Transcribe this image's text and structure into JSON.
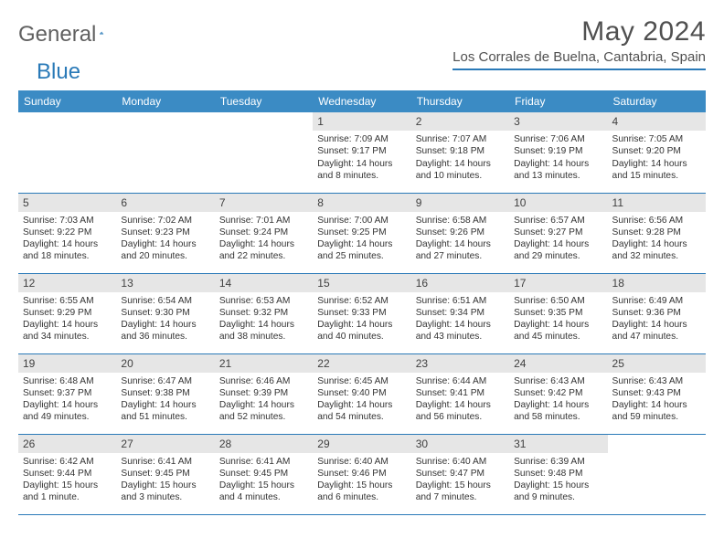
{
  "brand": {
    "part1": "General",
    "part2": "Blue"
  },
  "title": "May 2024",
  "location": "Los Corrales de Buelna, Cantabria, Spain",
  "colors": {
    "header_bg": "#3b8bc4",
    "accent": "#2a7ab8",
    "daynum_bg": "#e6e6e6",
    "text": "#333333",
    "title_text": "#505050"
  },
  "day_headers": [
    "Sunday",
    "Monday",
    "Tuesday",
    "Wednesday",
    "Thursday",
    "Friday",
    "Saturday"
  ],
  "weeks": [
    [
      {
        "n": "",
        "sr": "",
        "ss": "",
        "dl": ""
      },
      {
        "n": "",
        "sr": "",
        "ss": "",
        "dl": ""
      },
      {
        "n": "",
        "sr": "",
        "ss": "",
        "dl": ""
      },
      {
        "n": "1",
        "sr": "7:09 AM",
        "ss": "9:17 PM",
        "dl": "14 hours and 8 minutes."
      },
      {
        "n": "2",
        "sr": "7:07 AM",
        "ss": "9:18 PM",
        "dl": "14 hours and 10 minutes."
      },
      {
        "n": "3",
        "sr": "7:06 AM",
        "ss": "9:19 PM",
        "dl": "14 hours and 13 minutes."
      },
      {
        "n": "4",
        "sr": "7:05 AM",
        "ss": "9:20 PM",
        "dl": "14 hours and 15 minutes."
      }
    ],
    [
      {
        "n": "5",
        "sr": "7:03 AM",
        "ss": "9:22 PM",
        "dl": "14 hours and 18 minutes."
      },
      {
        "n": "6",
        "sr": "7:02 AM",
        "ss": "9:23 PM",
        "dl": "14 hours and 20 minutes."
      },
      {
        "n": "7",
        "sr": "7:01 AM",
        "ss": "9:24 PM",
        "dl": "14 hours and 22 minutes."
      },
      {
        "n": "8",
        "sr": "7:00 AM",
        "ss": "9:25 PM",
        "dl": "14 hours and 25 minutes."
      },
      {
        "n": "9",
        "sr": "6:58 AM",
        "ss": "9:26 PM",
        "dl": "14 hours and 27 minutes."
      },
      {
        "n": "10",
        "sr": "6:57 AM",
        "ss": "9:27 PM",
        "dl": "14 hours and 29 minutes."
      },
      {
        "n": "11",
        "sr": "6:56 AM",
        "ss": "9:28 PM",
        "dl": "14 hours and 32 minutes."
      }
    ],
    [
      {
        "n": "12",
        "sr": "6:55 AM",
        "ss": "9:29 PM",
        "dl": "14 hours and 34 minutes."
      },
      {
        "n": "13",
        "sr": "6:54 AM",
        "ss": "9:30 PM",
        "dl": "14 hours and 36 minutes."
      },
      {
        "n": "14",
        "sr": "6:53 AM",
        "ss": "9:32 PM",
        "dl": "14 hours and 38 minutes."
      },
      {
        "n": "15",
        "sr": "6:52 AM",
        "ss": "9:33 PM",
        "dl": "14 hours and 40 minutes."
      },
      {
        "n": "16",
        "sr": "6:51 AM",
        "ss": "9:34 PM",
        "dl": "14 hours and 43 minutes."
      },
      {
        "n": "17",
        "sr": "6:50 AM",
        "ss": "9:35 PM",
        "dl": "14 hours and 45 minutes."
      },
      {
        "n": "18",
        "sr": "6:49 AM",
        "ss": "9:36 PM",
        "dl": "14 hours and 47 minutes."
      }
    ],
    [
      {
        "n": "19",
        "sr": "6:48 AM",
        "ss": "9:37 PM",
        "dl": "14 hours and 49 minutes."
      },
      {
        "n": "20",
        "sr": "6:47 AM",
        "ss": "9:38 PM",
        "dl": "14 hours and 51 minutes."
      },
      {
        "n": "21",
        "sr": "6:46 AM",
        "ss": "9:39 PM",
        "dl": "14 hours and 52 minutes."
      },
      {
        "n": "22",
        "sr": "6:45 AM",
        "ss": "9:40 PM",
        "dl": "14 hours and 54 minutes."
      },
      {
        "n": "23",
        "sr": "6:44 AM",
        "ss": "9:41 PM",
        "dl": "14 hours and 56 minutes."
      },
      {
        "n": "24",
        "sr": "6:43 AM",
        "ss": "9:42 PM",
        "dl": "14 hours and 58 minutes."
      },
      {
        "n": "25",
        "sr": "6:43 AM",
        "ss": "9:43 PM",
        "dl": "14 hours and 59 minutes."
      }
    ],
    [
      {
        "n": "26",
        "sr": "6:42 AM",
        "ss": "9:44 PM",
        "dl": "15 hours and 1 minute."
      },
      {
        "n": "27",
        "sr": "6:41 AM",
        "ss": "9:45 PM",
        "dl": "15 hours and 3 minutes."
      },
      {
        "n": "28",
        "sr": "6:41 AM",
        "ss": "9:45 PM",
        "dl": "15 hours and 4 minutes."
      },
      {
        "n": "29",
        "sr": "6:40 AM",
        "ss": "9:46 PM",
        "dl": "15 hours and 6 minutes."
      },
      {
        "n": "30",
        "sr": "6:40 AM",
        "ss": "9:47 PM",
        "dl": "15 hours and 7 minutes."
      },
      {
        "n": "31",
        "sr": "6:39 AM",
        "ss": "9:48 PM",
        "dl": "15 hours and 9 minutes."
      },
      {
        "n": "",
        "sr": "",
        "ss": "",
        "dl": ""
      }
    ]
  ],
  "labels": {
    "sunrise": "Sunrise:",
    "sunset": "Sunset:",
    "daylight": "Daylight:"
  }
}
